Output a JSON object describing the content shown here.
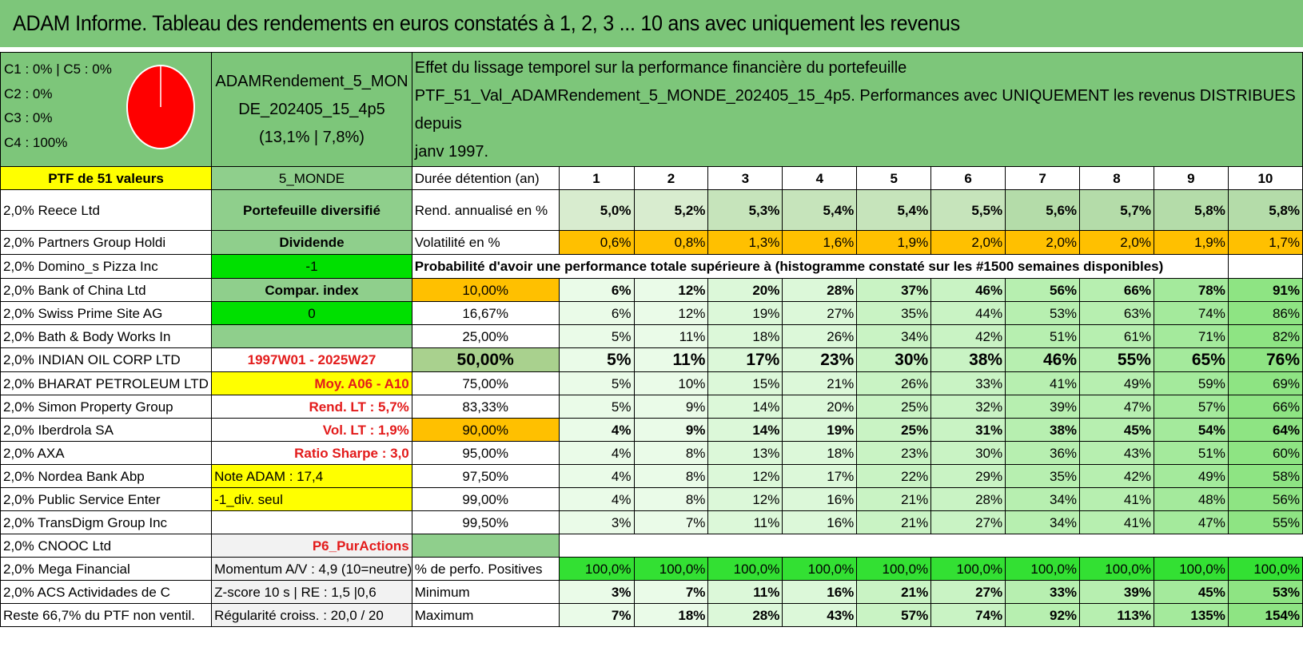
{
  "title": "ADAM Informe. Tableau des rendements en euros constatés à 1, 2, 3 ... 10 ans avec uniquement les revenus",
  "composition": {
    "lines": [
      "C1 : 0% | C5 : 0%",
      "C2 : 0%",
      "C3 : 0%",
      "C4 : 100%"
    ],
    "pie_color": "#ff0000"
  },
  "portfolio": {
    "name_line1": "ADAMRendement_5_MON",
    "name_line2": "DE_202405_15_4p5",
    "name_line3": "(13,1% | 7,8%)"
  },
  "effect_text": {
    "line1": "Effet du lissage temporel sur la performance financière du portefeuille",
    "line2": "PTF_51_Val_ADAMRendement_5_MONDE_202405_15_4p5. Performances avec UNIQUEMENT les revenus DISTRIBUES depuis",
    "line3": "janv 1997."
  },
  "ptf_label": "PTF de 51 valeurs",
  "zone_label": "5_MONDE",
  "duration_label": "Durée détention (an)",
  "years": [
    "1",
    "2",
    "3",
    "4",
    "5",
    "6",
    "7",
    "8",
    "9",
    "10"
  ],
  "holdings": [
    "2,0% Reece Ltd",
    "2,0% Partners Group Holdi",
    "2,0% Domino_s Pizza Inc",
    "2,0% Bank of China Ltd",
    "2,0% Swiss Prime Site AG",
    "2,0% Bath & Body Works In",
    "2,0% INDIAN OIL CORP LTD",
    "2,0% BHARAT PETROLEUM LTD",
    "2,0% Simon Property Group",
    "2,0% Iberdrola SA",
    "2,0% AXA",
    "2,0% Nordea Bank Abp",
    "2,0% Public Service Enter",
    "2,0% TransDigm Group Inc",
    "2,0% CNOOC Ltd",
    "2,0% Mega Financial",
    "2,0% ACS Actividades de C",
    "Reste 66,7% du PTF non ventil."
  ],
  "info": {
    "diversified": "Portefeuille diversifié",
    "dividend": "Dividende",
    "minus_one": "-1",
    "compar_index": "Compar. index",
    "zero": "0",
    "period": "1997W01 - 2025W27",
    "moy": "Moy. A06 - A10",
    "rend_lt": "Rend. LT : 5,7%",
    "vol_lt": "Vol. LT : 1,9%",
    "sharpe": "Ratio Sharpe : 3,0",
    "note": "Note ADAM : 17,4",
    "div_seul": "-1_div. seul",
    "p6": "P6_PurActions",
    "momentum": "Momentum A/V : 4,9 (10=neutre)",
    "zscore": "Z-score 10 s | RE : 1,5 |0,6",
    "regularite": "Régularité croiss. : 20,0 / 20"
  },
  "rend_label": "Rend. annualisé en %",
  "rend_values": [
    "5,0%",
    "5,2%",
    "5,3%",
    "5,4%",
    "5,4%",
    "5,5%",
    "5,6%",
    "5,7%",
    "5,8%",
    "5,8%"
  ],
  "vol_label": "Volatilité en %",
  "vol_values": [
    "0,6%",
    "0,8%",
    "1,3%",
    "1,6%",
    "1,9%",
    "2,0%",
    "2,0%",
    "2,0%",
    "1,9%",
    "1,7%"
  ],
  "proba_label": "Probabilité d'avoir une performance totale supérieure à (histogramme constaté sur les #1500 semaines disponibles)",
  "proba_rows": [
    {
      "p": "10,00%",
      "v": [
        "6%",
        "12%",
        "20%",
        "28%",
        "37%",
        "46%",
        "56%",
        "66%",
        "78%",
        "91%"
      ]
    },
    {
      "p": "16,67%",
      "v": [
        "6%",
        "12%",
        "19%",
        "27%",
        "35%",
        "44%",
        "53%",
        "63%",
        "74%",
        "86%"
      ]
    },
    {
      "p": "25,00%",
      "v": [
        "5%",
        "11%",
        "18%",
        "26%",
        "34%",
        "42%",
        "51%",
        "61%",
        "71%",
        "82%"
      ]
    },
    {
      "p": "50,00%",
      "v": [
        "5%",
        "11%",
        "17%",
        "23%",
        "30%",
        "38%",
        "46%",
        "55%",
        "65%",
        "76%"
      ]
    },
    {
      "p": "75,00%",
      "v": [
        "5%",
        "10%",
        "15%",
        "21%",
        "26%",
        "33%",
        "41%",
        "49%",
        "59%",
        "69%"
      ]
    },
    {
      "p": "83,33%",
      "v": [
        "5%",
        "9%",
        "14%",
        "20%",
        "25%",
        "32%",
        "39%",
        "47%",
        "57%",
        "66%"
      ]
    },
    {
      "p": "90,00%",
      "v": [
        "4%",
        "9%",
        "14%",
        "19%",
        "25%",
        "31%",
        "38%",
        "45%",
        "54%",
        "64%"
      ]
    },
    {
      "p": "95,00%",
      "v": [
        "4%",
        "8%",
        "13%",
        "18%",
        "23%",
        "30%",
        "36%",
        "43%",
        "51%",
        "60%"
      ]
    },
    {
      "p": "97,50%",
      "v": [
        "4%",
        "8%",
        "12%",
        "17%",
        "22%",
        "29%",
        "35%",
        "42%",
        "49%",
        "58%"
      ]
    },
    {
      "p": "99,00%",
      "v": [
        "4%",
        "8%",
        "12%",
        "16%",
        "21%",
        "28%",
        "34%",
        "41%",
        "48%",
        "56%"
      ]
    },
    {
      "p": "99,50%",
      "v": [
        "3%",
        "7%",
        "11%",
        "16%",
        "21%",
        "27%",
        "34%",
        "41%",
        "47%",
        "55%"
      ]
    }
  ],
  "pos_label": "% de perfo. Positives",
  "pos_values": [
    "100,0%",
    "100,0%",
    "100,0%",
    "100,0%",
    "100,0%",
    "100,0%",
    "100,0%",
    "100,0%",
    "100,0%",
    "100,0%"
  ],
  "min_label": "Minimum",
  "min_values": [
    "3%",
    "7%",
    "11%",
    "16%",
    "21%",
    "27%",
    "33%",
    "39%",
    "45%",
    "53%"
  ],
  "max_label": "Maximum",
  "max_values": [
    "7%",
    "18%",
    "28%",
    "43%",
    "57%",
    "74%",
    "92%",
    "113%",
    "135%",
    "154%"
  ]
}
